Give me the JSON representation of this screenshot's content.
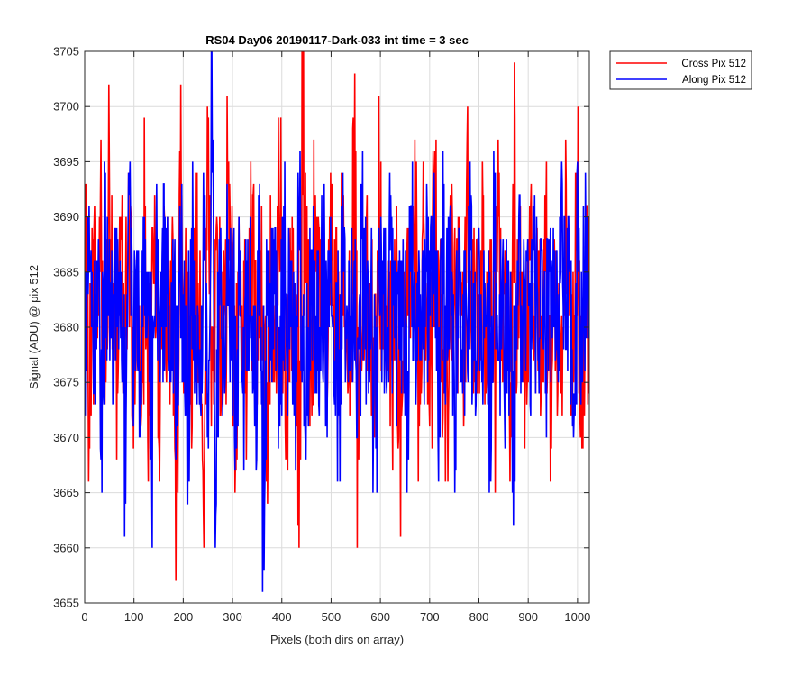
{
  "chart_data": {
    "type": "line",
    "title": "RS04 Day06 20190117-Dark-033 int time = 3 sec",
    "xlabel": "Pixels (both dirs on array)",
    "ylabel": "Signal (ADU) @ pix 512",
    "xlim": [
      0,
      1024
    ],
    "ylim": [
      3655,
      3705
    ],
    "x_ticks": [
      0,
      100,
      200,
      300,
      400,
      500,
      600,
      700,
      800,
      900,
      1000
    ],
    "y_ticks": [
      3655,
      3660,
      3665,
      3670,
      3675,
      3680,
      3685,
      3690,
      3695,
      3700,
      3705
    ],
    "grid": true,
    "legend_position": "outside-top-right",
    "x": {
      "start": 1,
      "end": 1024,
      "step": 1
    },
    "series": [
      {
        "name": "Cross Pix 512",
        "color": "#ff0000",
        "values_approx_every_8px": [
          3693,
          3671,
          3688,
          3681,
          3697,
          3673,
          3702,
          3684,
          3668,
          3690,
          3678,
          3694,
          3671,
          3686,
          3675,
          3699,
          3666,
          3689,
          3680,
          3672,
          3691,
          3677,
          3687,
          3657,
          3696,
          3674,
          3683,
          3669,
          3694,
          3679,
          3663,
          3700,
          3671,
          3688,
          3681,
          3676,
          3701,
          3684,
          3665,
          3690,
          3678,
          3674,
          3695,
          3683,
          3688,
          3679,
          3666,
          3692,
          3675,
          3699,
          3681,
          3669,
          3689,
          3676,
          3662,
          3705,
          3684,
          3671,
          3697,
          3679,
          3688,
          3673,
          3690,
          3682,
          3670,
          3694,
          3676,
          3687,
          3699,
          3660,
          3678,
          3689,
          3683,
          3672,
          3695,
          3680,
          3686,
          3667,
          3691,
          3661,
          3676,
          3689,
          3682,
          3695,
          3673,
          3688,
          3679,
          3669,
          3697,
          3684,
          3676,
          3666,
          3693,
          3681,
          3687,
          3671,
          3700,
          3678,
          3684,
          3674,
          3692,
          3680,
          3688,
          3665,
          3694,
          3677,
          3683,
          3670,
          3699,
          3679,
          3685,
          3673,
          3691,
          3681,
          3687,
          3676,
          3695,
          3666,
          3688,
          3680,
          3672,
          3693,
          3684,
          3678,
          3700,
          3669,
          3686,
          3681
        ]
      },
      {
        "name": "Along Pix 512",
        "color": "#0000ff",
        "values_approx_every_8px": [
          3672,
          3691,
          3678,
          3686,
          3668,
          3692,
          3683,
          3673,
          3689,
          3679,
          3661,
          3694,
          3677,
          3686,
          3670,
          3690,
          3681,
          3660,
          3688,
          3675,
          3693,
          3679,
          3684,
          3668,
          3691,
          3676,
          3664,
          3689,
          3681,
          3673,
          3694,
          3670,
          3705,
          3660,
          3688,
          3676,
          3693,
          3681,
          3667,
          3690,
          3674,
          3686,
          3679,
          3671,
          3692,
          3656,
          3688,
          3677,
          3683,
          3669,
          3690,
          3679,
          3686,
          3672,
          3694,
          3675,
          3668,
          3689,
          3682,
          3676,
          3692,
          3671,
          3687,
          3680,
          3666,
          3691,
          3675,
          3685,
          3679,
          3670,
          3693,
          3678,
          3684,
          3665,
          3690,
          3681,
          3675,
          3689,
          3671,
          3686,
          3679,
          3668,
          3695,
          3676,
          3683,
          3673,
          3690,
          3680,
          3687,
          3670,
          3693,
          3678,
          3685,
          3667,
          3689,
          3681,
          3676,
          3691,
          3672,
          3686,
          3679,
          3684,
          3669,
          3694,
          3677,
          3688,
          3674,
          3682,
          3666,
          3690,
          3680,
          3686,
          3672,
          3692,
          3678,
          3684,
          3670,
          3689,
          3681,
          3675,
          3693,
          3678,
          3686,
          3672,
          3690,
          3679,
          3687,
          3684
        ]
      }
    ]
  }
}
